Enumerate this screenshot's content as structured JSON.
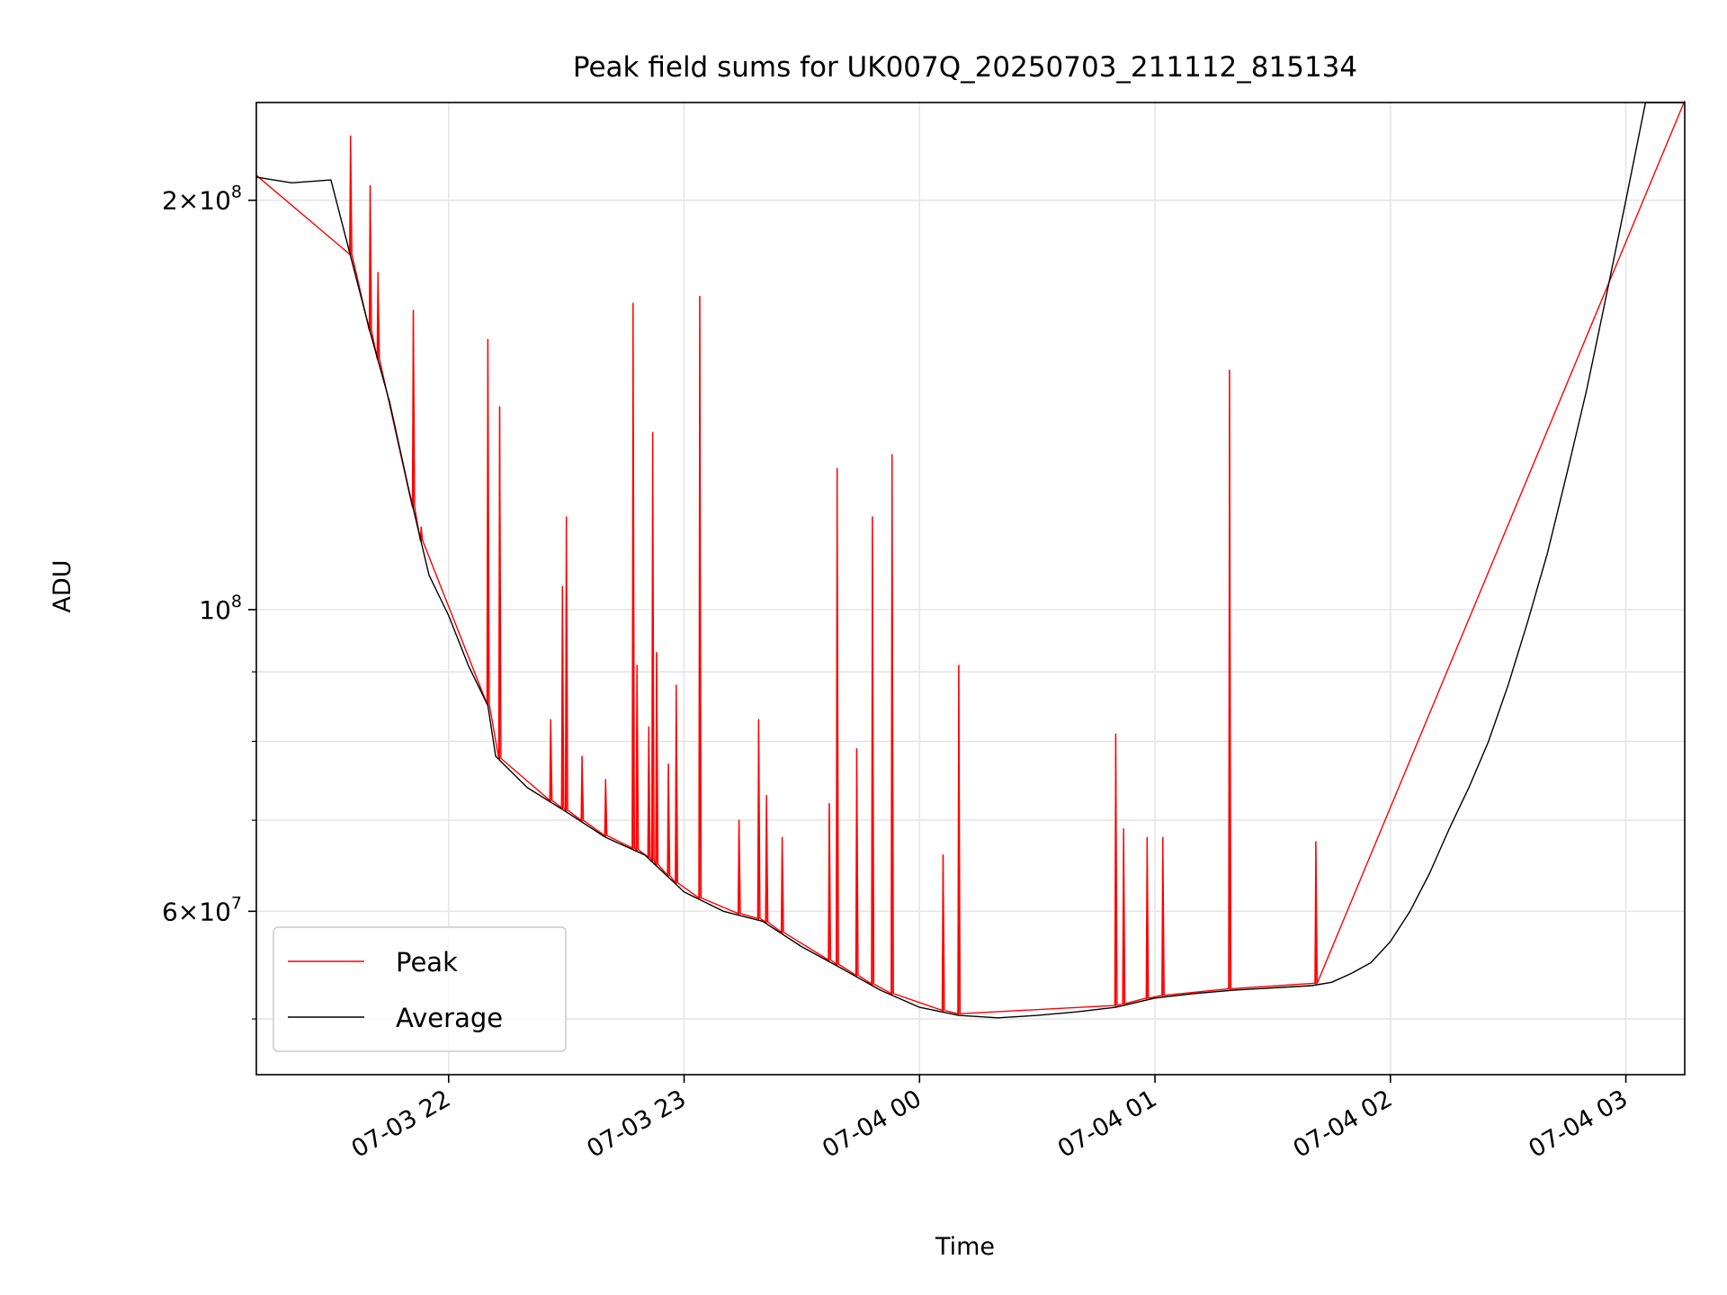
{
  "chart_data": {
    "type": "line",
    "title": "Peak field sums for UK007Q_20250703_211112_815134",
    "xlabel": "Time",
    "ylabel": "ADU",
    "yscale": "log",
    "ylim": [
      45500000,
      236000000
    ],
    "xlim": [
      "2025-07-03 21:11:00",
      "2025-07-04 03:15:00"
    ],
    "grid": true,
    "legend": {
      "location": "lower-left",
      "entries": [
        "Peak",
        "Average"
      ]
    },
    "x_ticks": [
      {
        "time": "2025-07-03 22:00",
        "label": "07-03 22"
      },
      {
        "time": "2025-07-03 23:00",
        "label": "07-03 23"
      },
      {
        "time": "2025-07-04 00:00",
        "label": "07-04 00"
      },
      {
        "time": "2025-07-04 01:00",
        "label": "07-04 01"
      },
      {
        "time": "2025-07-04 02:00",
        "label": "07-04 02"
      },
      {
        "time": "2025-07-04 03:00",
        "label": "07-04 03"
      }
    ],
    "y_ticks_major": [
      {
        "value": 200000000,
        "base": "2",
        "sep": "×",
        "exp_base": "10",
        "exp": "8"
      },
      {
        "value": 100000000,
        "base": "",
        "sep": "",
        "exp_base": "10",
        "exp": "8"
      },
      {
        "value": 60000000,
        "base": "6",
        "sep": "×",
        "exp_base": "10",
        "exp": "7"
      }
    ],
    "y_ticks_minor": [
      50000000,
      70000000,
      80000000,
      90000000
    ],
    "series": [
      {
        "name": "Average",
        "color": "#000000",
        "x": [
          "2025-07-03 21:11",
          "2025-07-03 21:20",
          "2025-07-03 21:30",
          "2025-07-03 21:40",
          "2025-07-03 21:45",
          "2025-07-03 21:50",
          "2025-07-03 21:55",
          "2025-07-03 22:00",
          "2025-07-03 22:05",
          "2025-07-03 22:10",
          "2025-07-03 22:12",
          "2025-07-03 22:20",
          "2025-07-03 22:30",
          "2025-07-03 22:40",
          "2025-07-03 22:50",
          "2025-07-03 23:00",
          "2025-07-03 23:10",
          "2025-07-03 23:20",
          "2025-07-03 23:30",
          "2025-07-03 23:40",
          "2025-07-03 23:50",
          "2025-07-04 00:00",
          "2025-07-04 00:10",
          "2025-07-04 00:20",
          "2025-07-04 00:30",
          "2025-07-04 00:40",
          "2025-07-04 00:50",
          "2025-07-04 01:00",
          "2025-07-04 01:10",
          "2025-07-04 01:20",
          "2025-07-04 01:30",
          "2025-07-04 01:40",
          "2025-07-04 01:45",
          "2025-07-04 01:50",
          "2025-07-04 01:55",
          "2025-07-04 02:00",
          "2025-07-04 02:05",
          "2025-07-04 02:10",
          "2025-07-04 02:15",
          "2025-07-04 02:20",
          "2025-07-04 02:25",
          "2025-07-04 02:30",
          "2025-07-04 02:35",
          "2025-07-04 02:40",
          "2025-07-04 02:45",
          "2025-07-04 02:50",
          "2025-07-04 02:55",
          "2025-07-04 03:00",
          "2025-07-04 03:05",
          "2025-07-04 03:15"
        ],
        "y": [
          208000000,
          206000000,
          207000000,
          160000000,
          142000000,
          122000000,
          106000000,
          99000000,
          91000000,
          85000000,
          78000000,
          74000000,
          71000000,
          68000000,
          66000000,
          62000000,
          60000000,
          59000000,
          56500000,
          54500000,
          52500000,
          51000000,
          50300000,
          50100000,
          50300000,
          50600000,
          51000000,
          51800000,
          52200000,
          52500000,
          52700000,
          52900000,
          53200000,
          54000000,
          55000000,
          57000000,
          60000000,
          64000000,
          69000000,
          74000000,
          80000000,
          88000000,
          98000000,
          110000000,
          126000000,
          145000000,
          170000000,
          200000000,
          236000000,
          236000000
        ]
      },
      {
        "name": "Peak",
        "color": "#ff0000",
        "spikes": [
          {
            "time": "2025-07-03 21:35",
            "value": 223000000
          },
          {
            "time": "2025-07-03 21:40",
            "value": 205000000
          },
          {
            "time": "2025-07-03 21:42",
            "value": 177000000
          },
          {
            "time": "2025-07-03 21:51",
            "value": 166000000
          },
          {
            "time": "2025-07-03 21:53",
            "value": 115000000
          },
          {
            "time": "2025-07-03 22:10",
            "value": 158000000
          },
          {
            "time": "2025-07-03 22:13",
            "value": 141000000
          },
          {
            "time": "2025-07-03 22:26",
            "value": 83000000
          },
          {
            "time": "2025-07-03 22:29",
            "value": 104000000
          },
          {
            "time": "2025-07-03 22:30",
            "value": 117000000
          },
          {
            "time": "2025-07-03 22:34",
            "value": 78000000
          },
          {
            "time": "2025-07-03 22:40",
            "value": 75000000
          },
          {
            "time": "2025-07-03 22:47",
            "value": 168000000
          },
          {
            "time": "2025-07-03 22:48",
            "value": 91000000
          },
          {
            "time": "2025-07-03 22:51",
            "value": 82000000
          },
          {
            "time": "2025-07-03 22:52",
            "value": 135000000
          },
          {
            "time": "2025-07-03 22:53",
            "value": 93000000
          },
          {
            "time": "2025-07-03 22:56",
            "value": 77000000
          },
          {
            "time": "2025-07-03 22:58",
            "value": 88000000
          },
          {
            "time": "2025-07-03 23:04",
            "value": 170000000
          },
          {
            "time": "2025-07-03 23:14",
            "value": 70000000
          },
          {
            "time": "2025-07-03 23:19",
            "value": 83000000
          },
          {
            "time": "2025-07-03 23:21",
            "value": 73000000
          },
          {
            "time": "2025-07-03 23:25",
            "value": 68000000
          },
          {
            "time": "2025-07-03 23:37",
            "value": 72000000
          },
          {
            "time": "2025-07-03 23:39",
            "value": 127000000
          },
          {
            "time": "2025-07-03 23:44",
            "value": 79000000
          },
          {
            "time": "2025-07-03 23:48",
            "value": 117000000
          },
          {
            "time": "2025-07-03 23:53",
            "value": 130000000
          },
          {
            "time": "2025-07-04 00:06",
            "value": 66000000
          },
          {
            "time": "2025-07-04 00:10",
            "value": 91000000
          },
          {
            "time": "2025-07-04 00:50",
            "value": 81000000
          },
          {
            "time": "2025-07-04 00:52",
            "value": 69000000
          },
          {
            "time": "2025-07-04 00:58",
            "value": 68000000
          },
          {
            "time": "2025-07-04 01:02",
            "value": 68000000
          },
          {
            "time": "2025-07-04 01:19",
            "value": 150000000
          },
          {
            "time": "2025-07-04 01:41",
            "value": 67500000
          }
        ]
      }
    ]
  }
}
